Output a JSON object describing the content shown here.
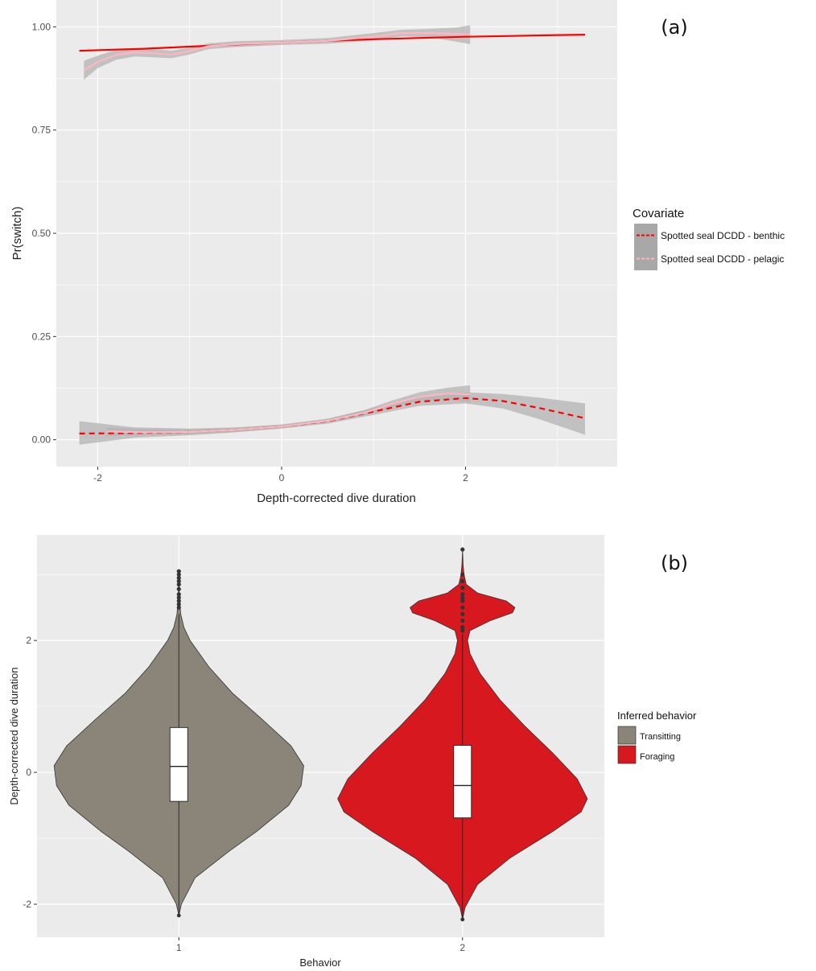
{
  "chart_data": [
    {
      "type": "line",
      "panel_label": "(a)",
      "xlabel": "Depth-corrected dive duration",
      "ylabel": "Pr(switch)",
      "xlim": [
        -2.45,
        3.65
      ],
      "ylim": [
        -0.065,
        1.065
      ],
      "x_ticks": [
        -2,
        0,
        2
      ],
      "x_tick_labels": [
        "-2",
        "0",
        "2"
      ],
      "y_ticks": [
        0.0,
        0.25,
        0.5,
        0.75,
        1.0
      ],
      "y_tick_labels": [
        "0.00",
        "0.25",
        "0.50",
        "0.75",
        "1.00"
      ],
      "grid": true,
      "legend": {
        "title": "Covariate",
        "position": "right",
        "entries": [
          "Spotted seal DCDD - benthic",
          "Spotted seal DCDD - pelagic"
        ]
      },
      "colors": {
        "benthic": "#ff0000",
        "pelagic": "#ffb6c1",
        "band": "#b3b3b3"
      },
      "series": [
        {
          "name": "Spotted seal DCDD - benthic",
          "group": "upper",
          "style": "solid",
          "x": [
            -2.2,
            -1.5,
            -1.0,
            -0.5,
            0.0,
            0.5,
            1.0,
            1.5,
            2.0,
            2.5,
            3.0,
            3.3
          ],
          "y": [
            0.942,
            0.947,
            0.952,
            0.957,
            0.962,
            0.966,
            0.97,
            0.973,
            0.976,
            0.978,
            0.98,
            0.981
          ]
        },
        {
          "name": "Spotted seal DCDD - pelagic",
          "group": "upper",
          "style": "solid",
          "x": [
            -2.15,
            -2.0,
            -1.8,
            -1.6,
            -1.4,
            -1.2,
            -1.0,
            -0.8,
            -0.5,
            0.0,
            0.5,
            1.0,
            1.3,
            1.6,
            1.9,
            2.05
          ],
          "y": [
            0.895,
            0.915,
            0.932,
            0.938,
            0.936,
            0.933,
            0.941,
            0.953,
            0.958,
            0.962,
            0.966,
            0.976,
            0.985,
            0.985,
            0.983,
            0.981
          ],
          "band_lower": [
            0.872,
            0.9,
            0.92,
            0.928,
            0.926,
            0.924,
            0.933,
            0.946,
            0.951,
            0.956,
            0.959,
            0.967,
            0.977,
            0.975,
            0.964,
            0.958
          ],
          "band_upper": [
            0.918,
            0.93,
            0.944,
            0.948,
            0.946,
            0.942,
            0.949,
            0.96,
            0.965,
            0.968,
            0.973,
            0.985,
            0.993,
            0.995,
            0.998,
            1.004
          ]
        },
        {
          "name": "Spotted seal DCDD - benthic",
          "group": "lower",
          "style": "dashed",
          "x": [
            -2.2,
            -1.6,
            -1.0,
            -0.5,
            0.0,
            0.5,
            1.0,
            1.5,
            2.0,
            2.4,
            2.8,
            3.3
          ],
          "y": [
            0.015,
            0.016,
            0.019,
            0.024,
            0.032,
            0.045,
            0.068,
            0.092,
            0.101,
            0.094,
            0.077,
            0.052
          ],
          "band_lower": [
            -0.012,
            0.005,
            0.011,
            0.018,
            0.027,
            0.039,
            0.06,
            0.082,
            0.088,
            0.076,
            0.05,
            0.012
          ],
          "band_upper": [
            0.045,
            0.03,
            0.027,
            0.03,
            0.037,
            0.051,
            0.077,
            0.104,
            0.115,
            0.111,
            0.102,
            0.088
          ]
        },
        {
          "name": "Spotted seal DCDD - pelagic",
          "group": "lower",
          "style": "solid",
          "x": [
            -1.9,
            -1.5,
            -1.0,
            -0.5,
            0.0,
            0.5,
            0.9,
            1.2,
            1.5,
            1.8,
            2.05
          ],
          "y": [
            0.02,
            0.018,
            0.019,
            0.024,
            0.032,
            0.046,
            0.065,
            0.087,
            0.104,
            0.112,
            0.11
          ],
          "band_lower": [
            0.01,
            0.011,
            0.013,
            0.019,
            0.028,
            0.041,
            0.059,
            0.079,
            0.094,
            0.098,
            0.09
          ],
          "band_upper": [
            0.03,
            0.026,
            0.025,
            0.029,
            0.036,
            0.051,
            0.072,
            0.095,
            0.115,
            0.126,
            0.132
          ]
        }
      ]
    },
    {
      "type": "violin",
      "panel_label": "(b)",
      "xlabel": "Behavior",
      "ylabel": "Depth-corrected dive duration",
      "categories": [
        "1",
        "2"
      ],
      "ylim": [
        -2.5,
        3.6
      ],
      "y_ticks": [
        -2,
        0,
        2
      ],
      "y_tick_labels": [
        "-2",
        "0",
        "2"
      ],
      "grid": true,
      "legend": {
        "title": "Inferred behavior",
        "position": "right",
        "entries": [
          "Transitting",
          "Foraging"
        ]
      },
      "colors": {
        "Transitting": "#8b8478",
        "Foraging": "#d7191f"
      },
      "series": [
        {
          "name": "Transitting",
          "category": "1",
          "min": -2.17,
          "max": 3.05,
          "box": {
            "q1": -0.44,
            "median": 0.09,
            "q3": 0.68,
            "whisker_low": -2.17,
            "whisker_high": 2.4
          },
          "outliers": [
            2.5,
            2.55,
            2.6,
            2.65,
            2.7,
            2.78,
            2.85,
            2.9,
            2.95,
            3.0,
            3.05
          ],
          "density_y": [
            -2.17,
            -2.0,
            -1.6,
            -1.2,
            -0.9,
            -0.5,
            -0.2,
            0.1,
            0.4,
            0.8,
            1.2,
            1.6,
            2.0,
            2.2,
            2.4,
            2.6,
            2.8,
            3.05
          ],
          "density_w": [
            0.0,
            0.02,
            0.13,
            0.4,
            0.62,
            0.88,
            0.98,
            1.0,
            0.9,
            0.67,
            0.43,
            0.24,
            0.09,
            0.04,
            0.015,
            0.006,
            0.003,
            0.0
          ]
        },
        {
          "name": "Foraging",
          "category": "2",
          "min": -2.23,
          "max": 3.38,
          "box": {
            "q1": -0.69,
            "median": -0.2,
            "q3": 0.41,
            "whisker_low": -2.23,
            "whisker_high": 2.1
          },
          "outliers": [
            2.15,
            2.2,
            2.3,
            2.4,
            2.5,
            2.6,
            2.65,
            2.7,
            2.8,
            2.9,
            3.0,
            3.38
          ],
          "density_y": [
            -2.23,
            -2.05,
            -1.7,
            -1.3,
            -0.9,
            -0.6,
            -0.4,
            -0.1,
            0.3,
            0.7,
            1.1,
            1.5,
            1.8,
            2.0,
            2.15,
            2.3,
            2.42,
            2.5,
            2.6,
            2.72,
            2.85,
            3.0,
            3.15,
            3.38
          ],
          "density_w": [
            0.0,
            0.02,
            0.12,
            0.38,
            0.72,
            0.95,
            1.0,
            0.92,
            0.72,
            0.5,
            0.3,
            0.14,
            0.06,
            0.04,
            0.06,
            0.22,
            0.4,
            0.42,
            0.35,
            0.12,
            0.03,
            0.012,
            0.005,
            0.0
          ]
        }
      ]
    }
  ]
}
